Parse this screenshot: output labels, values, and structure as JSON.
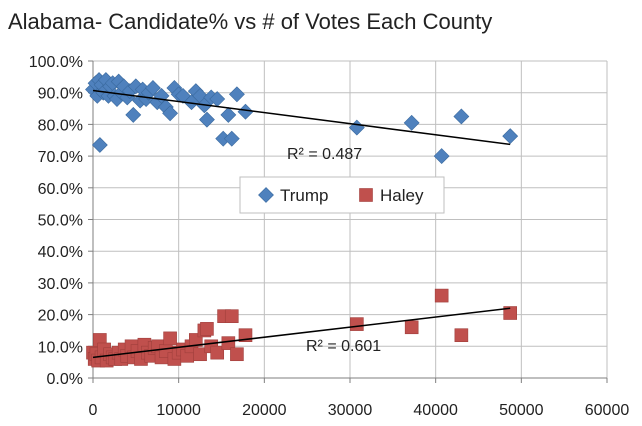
{
  "chart_data": {
    "type": "scatter",
    "title": "Alabama- Candidate%  vs # of Votes Each County",
    "xlabel": "",
    "ylabel": "",
    "xlim": [
      0,
      60000
    ],
    "ylim": [
      0,
      1
    ],
    "x_ticks": [
      {
        "value": 0,
        "label": "0"
      },
      {
        "value": 10000,
        "label": "10000"
      },
      {
        "value": 20000,
        "label": "20000"
      },
      {
        "value": 30000,
        "label": "30000"
      },
      {
        "value": 40000,
        "label": "40000"
      },
      {
        "value": 50000,
        "label": "50000"
      },
      {
        "value": 60000,
        "label": "60000"
      }
    ],
    "y_ticks": [
      {
        "value": 0.0,
        "label": "0.0%"
      },
      {
        "value": 0.1,
        "label": "10.0%"
      },
      {
        "value": 0.2,
        "label": "20.0%"
      },
      {
        "value": 0.3,
        "label": "30.0%"
      },
      {
        "value": 0.4,
        "label": "40.0%"
      },
      {
        "value": 0.5,
        "label": "50.0%"
      },
      {
        "value": 0.6,
        "label": "60.0%"
      },
      {
        "value": 0.7,
        "label": "70.0%"
      },
      {
        "value": 0.8,
        "label": "80.0%"
      },
      {
        "value": 0.9,
        "label": "90.0%"
      },
      {
        "value": 1.0,
        "label": "100.0%"
      }
    ],
    "grid": {
      "horizontal": true,
      "vertical": true
    },
    "legend": "center",
    "series": [
      {
        "name": "Trump",
        "color": "#4f81bd",
        "marker": "diamond",
        "points": [
          [
            0,
            0.91
          ],
          [
            300,
            0.93
          ],
          [
            500,
            0.89
          ],
          [
            700,
            0.94
          ],
          [
            800,
            0.735
          ],
          [
            1000,
            0.925
          ],
          [
            1200,
            0.9
          ],
          [
            1500,
            0.94
          ],
          [
            1800,
            0.89
          ],
          [
            2000,
            0.92
          ],
          [
            2300,
            0.93
          ],
          [
            2500,
            0.89
          ],
          [
            2800,
            0.88
          ],
          [
            3000,
            0.935
          ],
          [
            3300,
            0.9
          ],
          [
            3600,
            0.92
          ],
          [
            4000,
            0.885
          ],
          [
            4300,
            0.905
          ],
          [
            4700,
            0.83
          ],
          [
            5000,
            0.92
          ],
          [
            5500,
            0.875
          ],
          [
            5800,
            0.91
          ],
          [
            6200,
            0.88
          ],
          [
            6500,
            0.9
          ],
          [
            7000,
            0.915
          ],
          [
            7500,
            0.87
          ],
          [
            8000,
            0.89
          ],
          [
            8500,
            0.855
          ],
          [
            9000,
            0.835
          ],
          [
            9500,
            0.915
          ],
          [
            10000,
            0.895
          ],
          [
            10500,
            0.89
          ],
          [
            11500,
            0.87
          ],
          [
            12000,
            0.905
          ],
          [
            12500,
            0.89
          ],
          [
            13000,
            0.86
          ],
          [
            13300,
            0.815
          ],
          [
            13800,
            0.885
          ],
          [
            14500,
            0.88
          ],
          [
            15200,
            0.755
          ],
          [
            15800,
            0.83
          ],
          [
            16200,
            0.755
          ],
          [
            16800,
            0.895
          ],
          [
            17800,
            0.84
          ],
          [
            30800,
            0.79
          ],
          [
            37200,
            0.805
          ],
          [
            40700,
            0.7
          ],
          [
            43000,
            0.825
          ],
          [
            48700,
            0.763
          ]
        ],
        "trendline": {
          "x": [
            0,
            48700
          ],
          "y": [
            0.907,
            0.737
          ],
          "r2_label": "R² = 0.487"
        }
      },
      {
        "name": "Haley",
        "color": "#c0504d",
        "marker": "square",
        "points": [
          [
            0,
            0.08
          ],
          [
            200,
            0.06
          ],
          [
            400,
            0.075
          ],
          [
            600,
            0.055
          ],
          [
            800,
            0.12
          ],
          [
            1000,
            0.065
          ],
          [
            1300,
            0.09
          ],
          [
            1600,
            0.055
          ],
          [
            2000,
            0.075
          ],
          [
            2300,
            0.065
          ],
          [
            2600,
            0.06
          ],
          [
            3000,
            0.08
          ],
          [
            3300,
            0.06
          ],
          [
            3700,
            0.09
          ],
          [
            4000,
            0.07
          ],
          [
            4500,
            0.1
          ],
          [
            4800,
            0.065
          ],
          [
            5200,
            0.085
          ],
          [
            5600,
            0.06
          ],
          [
            6000,
            0.105
          ],
          [
            6400,
            0.08
          ],
          [
            6800,
            0.07
          ],
          [
            7200,
            0.095
          ],
          [
            7600,
            0.1
          ],
          [
            8000,
            0.065
          ],
          [
            8500,
            0.085
          ],
          [
            9000,
            0.125
          ],
          [
            9500,
            0.06
          ],
          [
            10000,
            0.08
          ],
          [
            10500,
            0.09
          ],
          [
            11000,
            0.07
          ],
          [
            11500,
            0.1
          ],
          [
            12000,
            0.12
          ],
          [
            12500,
            0.075
          ],
          [
            13000,
            0.15
          ],
          [
            13300,
            0.155
          ],
          [
            13800,
            0.1
          ],
          [
            14500,
            0.08
          ],
          [
            15300,
            0.195
          ],
          [
            15800,
            0.11
          ],
          [
            16200,
            0.195
          ],
          [
            16800,
            0.075
          ],
          [
            17800,
            0.135
          ],
          [
            30800,
            0.17
          ],
          [
            37200,
            0.16
          ],
          [
            40700,
            0.26
          ],
          [
            43000,
            0.135
          ],
          [
            48700,
            0.205
          ]
        ],
        "trendline": {
          "x": [
            0,
            48700
          ],
          "y": [
            0.065,
            0.22
          ],
          "r2_label": "R² = 0.601"
        }
      }
    ]
  }
}
